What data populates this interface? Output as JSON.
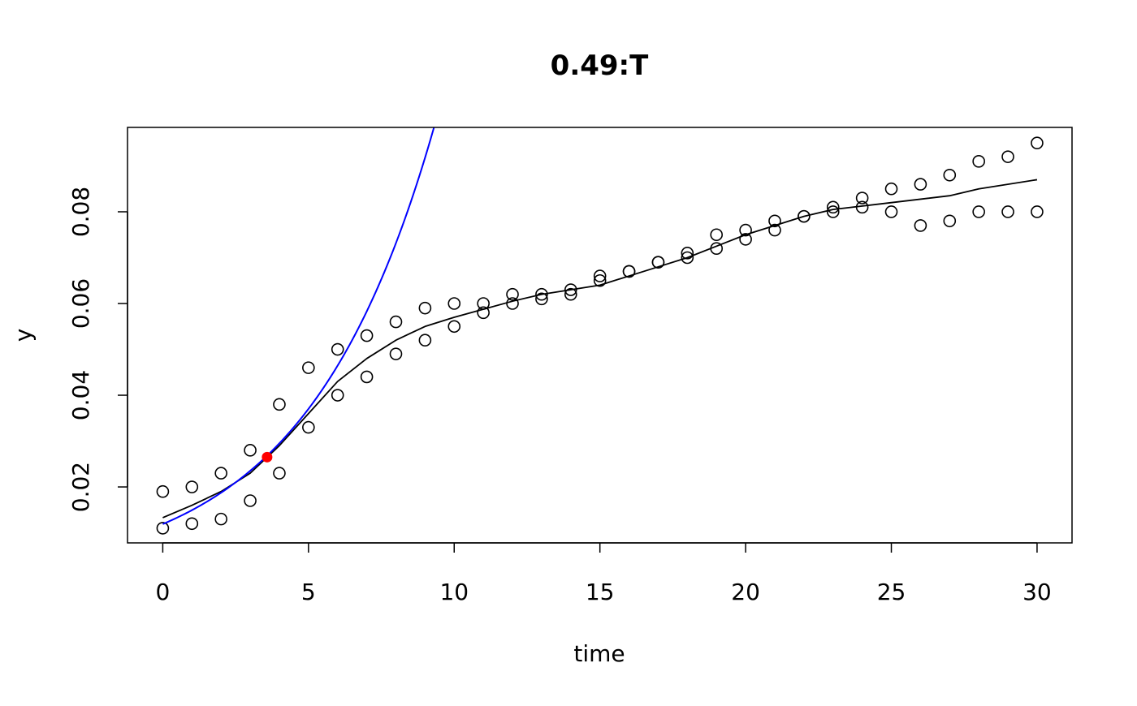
{
  "chart_data": {
    "type": "scatter",
    "title": "0.49:T",
    "xlabel": "time",
    "ylabel": "y",
    "xlim": [
      -1.21,
      31.2
    ],
    "ylim": [
      0.0078,
      0.0984
    ],
    "xticks": [
      0,
      5,
      10,
      15,
      20,
      25,
      30
    ],
    "xtick_labels": [
      "0",
      "5",
      "10",
      "15",
      "20",
      "25",
      "30"
    ],
    "yticks": [
      0.02,
      0.04,
      0.06,
      0.08
    ],
    "ytick_labels": [
      "0.02",
      "0.04",
      "0.06",
      "0.08"
    ],
    "grid": false,
    "points": {
      "x": [
        0,
        0,
        1,
        1,
        2,
        2,
        3,
        3,
        4,
        4,
        5,
        5,
        6,
        6,
        7,
        7,
        8,
        8,
        9,
        9,
        10,
        10,
        11,
        11,
        12,
        12,
        13,
        13,
        14,
        14,
        15,
        15,
        16,
        16,
        17,
        17,
        18,
        18,
        19,
        19,
        20,
        20,
        21,
        21,
        22,
        22,
        23,
        23,
        24,
        24,
        25,
        25,
        26,
        26,
        27,
        27,
        28,
        28,
        29,
        29,
        30,
        30
      ],
      "y": [
        0.019,
        0.011,
        0.02,
        0.012,
        0.023,
        0.013,
        0.028,
        0.017,
        0.038,
        0.023,
        0.046,
        0.033,
        0.05,
        0.04,
        0.053,
        0.044,
        0.056,
        0.049,
        0.059,
        0.052,
        0.06,
        0.055,
        0.06,
        0.058,
        0.062,
        0.06,
        0.062,
        0.061,
        0.063,
        0.062,
        0.066,
        0.065,
        0.067,
        0.067,
        0.069,
        0.069,
        0.071,
        0.07,
        0.075,
        0.072,
        0.076,
        0.074,
        0.078,
        0.076,
        0.079,
        0.079,
        0.081,
        0.08,
        0.083,
        0.081,
        0.085,
        0.08,
        0.086,
        0.077,
        0.088,
        0.078,
        0.091,
        0.08,
        0.092,
        0.08,
        0.095,
        0.08
      ]
    },
    "fit_curve": {
      "color": "#000000",
      "x": [
        0,
        1,
        2,
        3,
        4,
        5,
        6,
        7,
        8,
        9,
        10,
        12,
        13,
        15,
        17,
        18,
        20,
        22,
        23,
        25,
        27,
        28,
        30
      ],
      "y": [
        0.0133,
        0.016,
        0.019,
        0.023,
        0.029,
        0.036,
        0.043,
        0.048,
        0.052,
        0.055,
        0.057,
        0.0605,
        0.062,
        0.064,
        0.068,
        0.07,
        0.075,
        0.079,
        0.0805,
        0.082,
        0.0835,
        0.085,
        0.087
      ]
    },
    "exp_curve": {
      "color": "#0000ff",
      "y0": 0.0119,
      "rate": 0.227
    },
    "highlight_point": {
      "x": 3.58,
      "y": 0.0265,
      "color": "#ff0000"
    }
  }
}
